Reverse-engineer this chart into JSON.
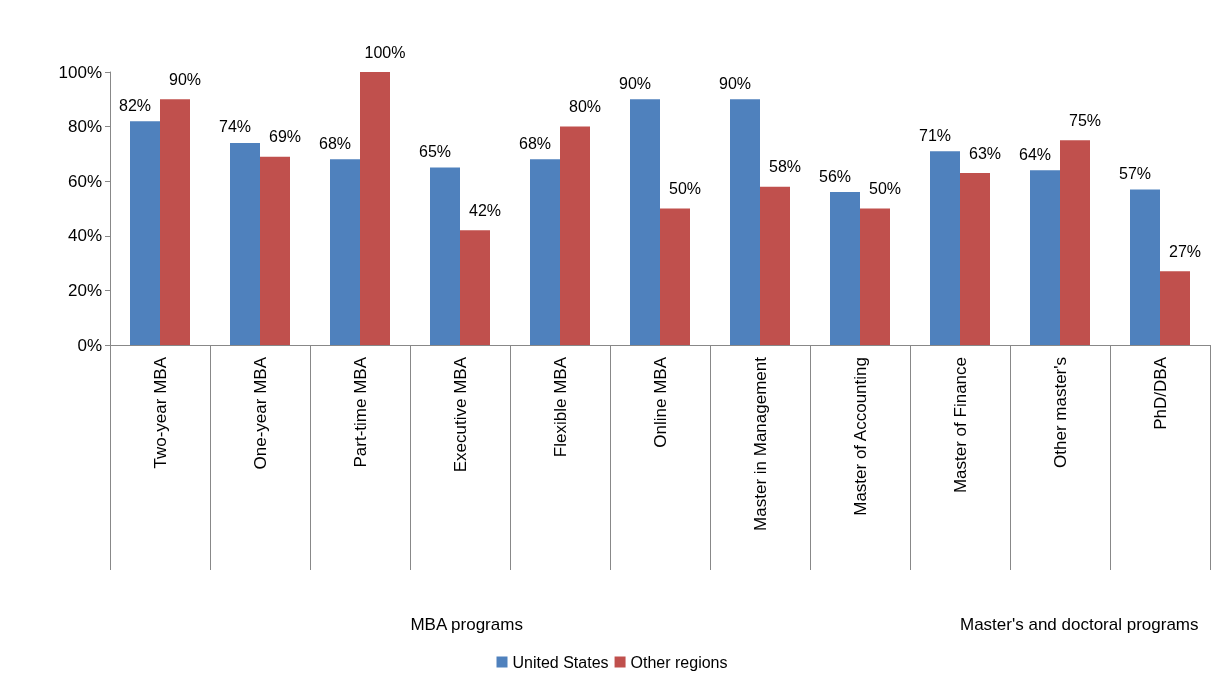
{
  "chart_data": {
    "type": "bar",
    "categories": [
      "Two-year MBA",
      "One-year MBA",
      "Part-time MBA",
      "Executive MBA",
      "Flexible MBA",
      "Online MBA",
      "Master in Management",
      "Master of Accounting",
      "Master of Finance",
      "Other master's",
      "PhD/DBA"
    ],
    "series": [
      {
        "name": "United States",
        "color": "#4f81bd",
        "values": [
          82,
          74,
          68,
          65,
          68,
          90,
          90,
          56,
          71,
          64,
          57
        ],
        "value_labels": [
          "82%",
          "74%",
          "68%",
          "65%",
          "68%",
          "90%",
          "90%",
          "56%",
          "71%",
          "64%",
          "57%"
        ]
      },
      {
        "name": "Other regions",
        "color": "#c0504d",
        "values": [
          90,
          69,
          100,
          42,
          80,
          50,
          58,
          50,
          63,
          75,
          27
        ],
        "value_labels": [
          "90%",
          "69%",
          "100%",
          "42%",
          "80%",
          "50%",
          "58%",
          "50%",
          "63%",
          "75%",
          "27%"
        ]
      }
    ],
    "ylim": [
      0,
      100
    ],
    "yticks": [
      {
        "value": 0,
        "label": "0%"
      },
      {
        "value": 20,
        "label": "20%"
      },
      {
        "value": 40,
        "label": "40%"
      },
      {
        "value": 60,
        "label": "60%"
      },
      {
        "value": 80,
        "label": "80%"
      },
      {
        "value": 100,
        "label": "100%"
      }
    ],
    "annotations": [
      "MBA programs",
      "Master's and doctoral programs"
    ],
    "grid": false,
    "legend": "bottom"
  }
}
